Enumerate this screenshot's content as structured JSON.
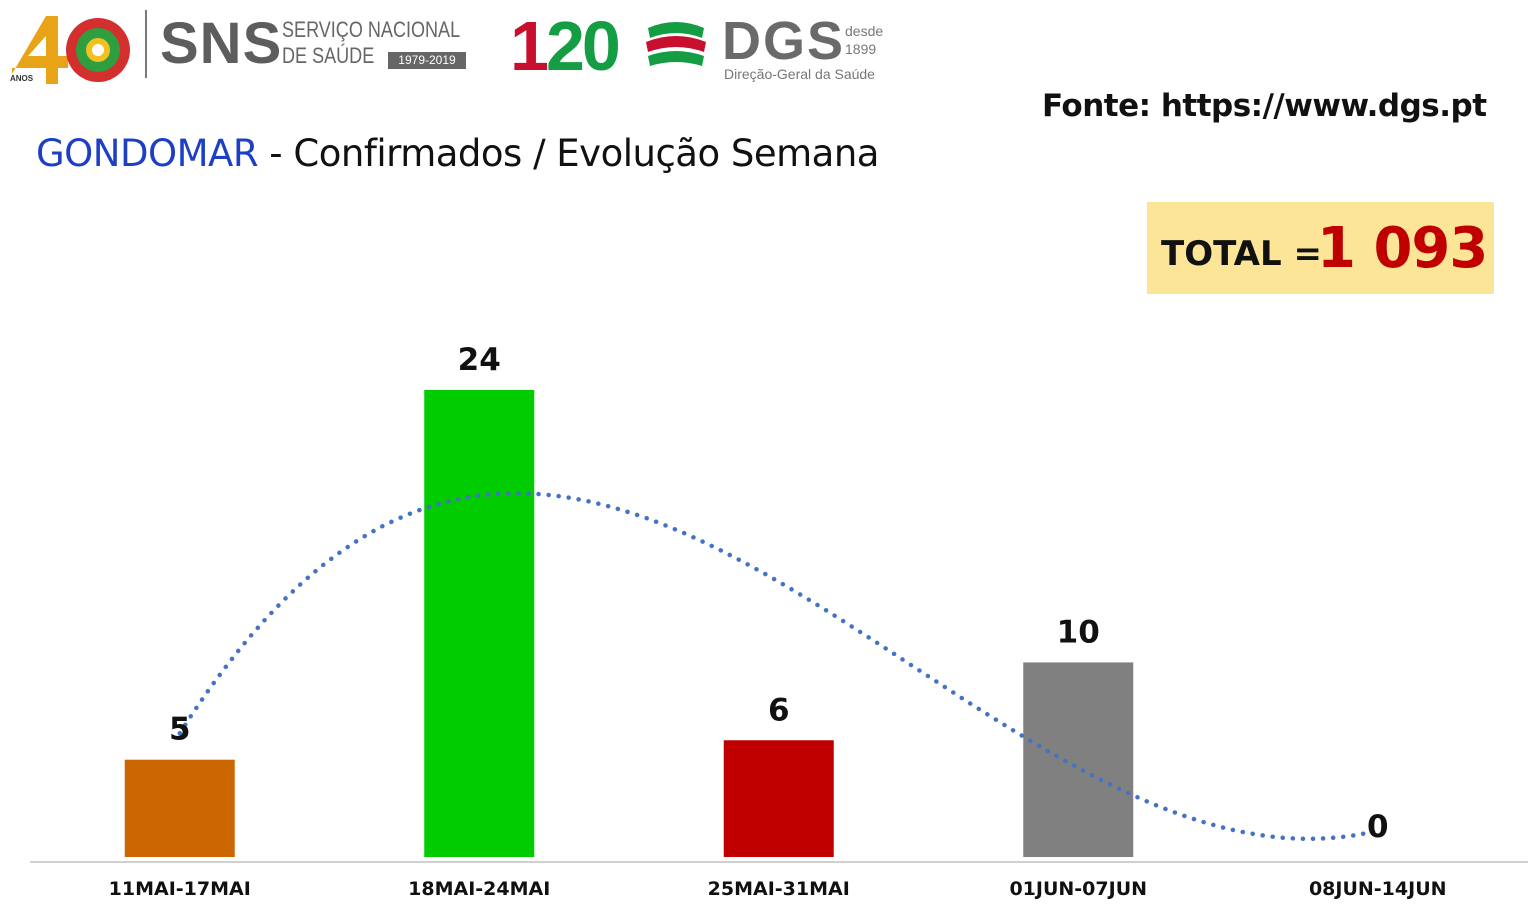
{
  "header": {
    "logo_40_text": "ANOS",
    "sns_text": "SNS",
    "sns_sub_line1": "SERVIÇO NACIONAL",
    "sns_sub_line2": "DE SAÚDE",
    "sns_years": "1979-2019",
    "logo_120_one": "1",
    "logo_120_rest": "20",
    "dgs_text": "DGS",
    "dgs_desde": "desde",
    "dgs_year": "1899",
    "dgs_sub": "Direção-Geral da Saúde"
  },
  "source": "Fonte: https://www.dgs.pt",
  "title": {
    "place": "GONDOMAR",
    "rest": " - Confirmados / Evolução Semana"
  },
  "total": {
    "label": "TOTAL = ",
    "value": "1 093"
  },
  "colors": {
    "title_accent": "#1c3fc6",
    "total_bg": "#fde598",
    "total_value": "#c00000",
    "trend_line": "#4472c4"
  },
  "chart_data": {
    "type": "bar",
    "categories": [
      "11MAI-17MAI",
      "18MAI-24MAI",
      "25MAI-31MAI",
      "01JUN-07JUN",
      "08JUN-14JUN"
    ],
    "values": [
      5,
      24,
      6,
      10,
      0
    ],
    "bar_colors": [
      "#cc6600",
      "#00cc00",
      "#c00000",
      "#808080",
      "#808080"
    ],
    "data_labels": [
      "5",
      "24",
      "6",
      "10",
      "0"
    ],
    "ylim": [
      0,
      24
    ],
    "grid": false,
    "trendline": "polynomial dotted"
  }
}
